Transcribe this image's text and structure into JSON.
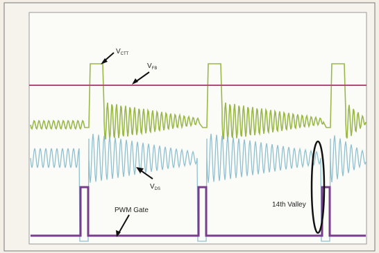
{
  "labels": {
    "v_ct": {
      "main": "V",
      "sub": "CTT"
    },
    "v_fb": {
      "main": "V",
      "sub": "FB"
    },
    "v_ds": {
      "main": "V",
      "sub": "DS"
    },
    "pwm_gate": "PWM Gate",
    "valley": "14th Valley"
  }
}
